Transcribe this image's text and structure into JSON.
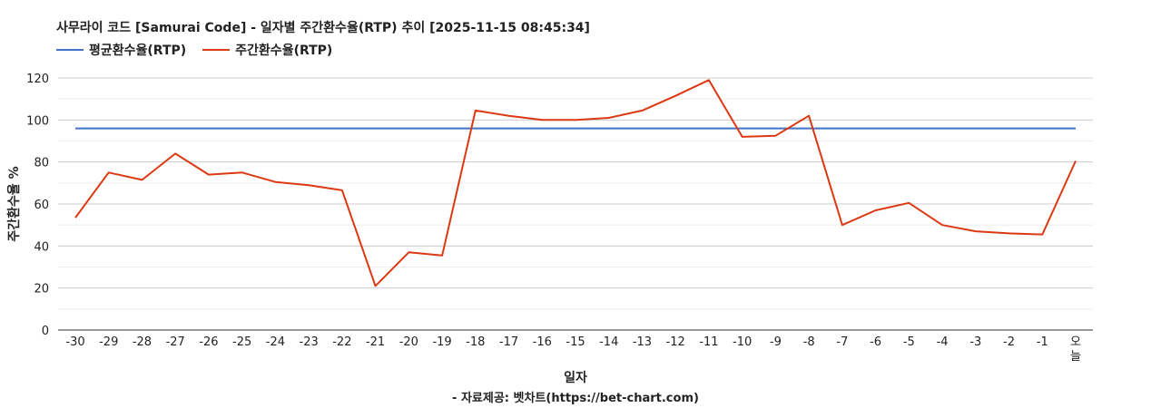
{
  "title": "사무라이 코드 [Samurai Code] - 일자별 주간환수율(RTP) 추이 [2025-11-15 08:45:34]",
  "footer": "- 자료제공: 벳차트(https://bet-chart.com)",
  "chart_data": {
    "type": "line",
    "xlabel": "일자",
    "ylabel": "주간환수율 %",
    "ylim": [
      0,
      120
    ],
    "yticks": [
      0,
      20,
      40,
      60,
      80,
      100,
      120
    ],
    "grid": true,
    "legend_position": "top-left",
    "categories": [
      "-30",
      "-29",
      "-28",
      "-27",
      "-26",
      "-25",
      "-24",
      "-23",
      "-22",
      "-21",
      "-20",
      "-19",
      "-18",
      "-17",
      "-16",
      "-15",
      "-14",
      "-13",
      "-12",
      "-11",
      "-10",
      "-9",
      "-8",
      "-7",
      "-6",
      "-5",
      "-4",
      "-3",
      "-2",
      "-1",
      "오늘"
    ],
    "series": [
      {
        "name": "평균환수율(RTP)",
        "color": "#4472c4",
        "values": [
          96,
          96,
          96,
          96,
          96,
          96,
          96,
          96,
          96,
          96,
          96,
          96,
          96,
          96,
          96,
          96,
          96,
          96,
          96,
          96,
          96,
          96,
          96,
          96,
          96,
          96,
          96,
          96,
          96,
          96,
          96
        ]
      },
      {
        "name": "주간환수율(RTP)",
        "color": "#dc3912",
        "values": [
          53.5,
          75,
          71.5,
          84,
          74,
          75,
          70.5,
          69,
          66.5,
          21,
          37,
          35.5,
          104.5,
          102,
          100,
          100,
          101,
          104.5,
          111.5,
          119,
          92,
          92.5,
          102,
          50,
          57,
          60.5,
          50,
          47,
          46,
          45.5,
          80.5
        ]
      }
    ]
  }
}
